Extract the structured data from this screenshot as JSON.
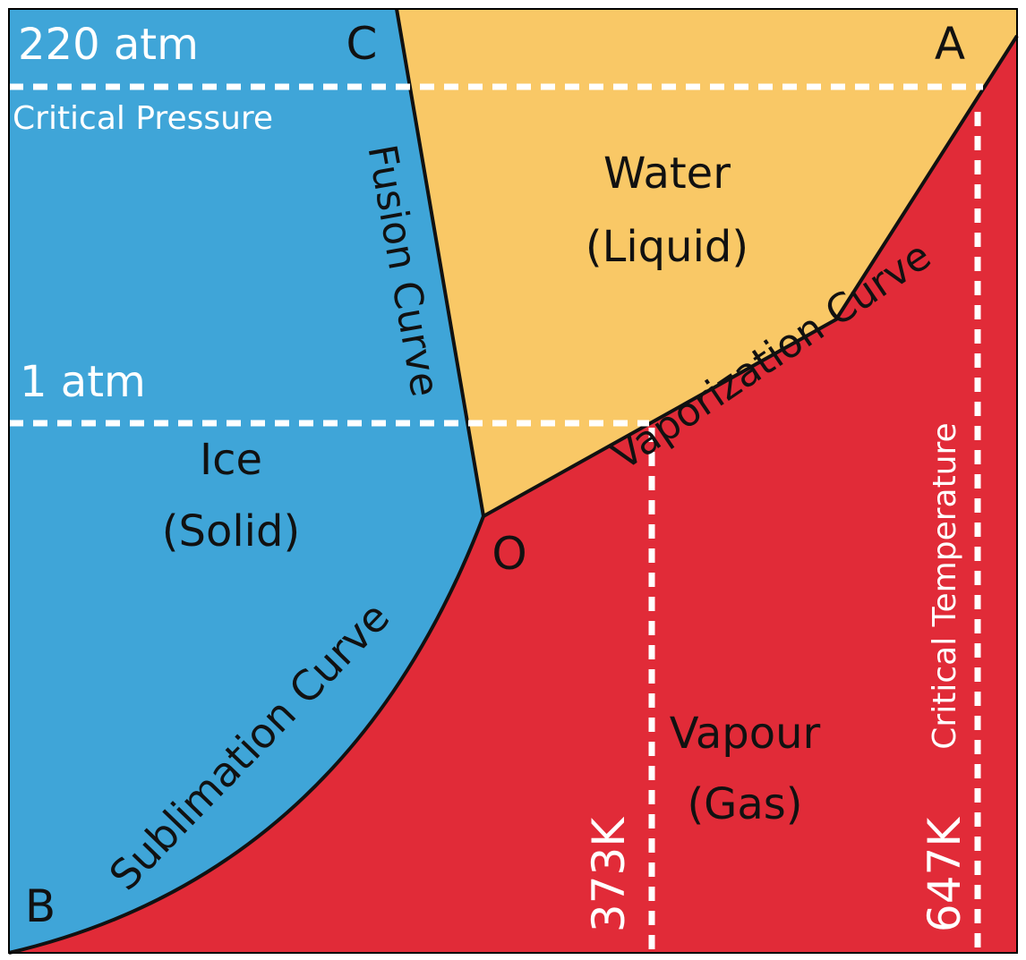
{
  "colors": {
    "solid": "#3fa5d8",
    "liquid": "#f9c866",
    "gas": "#e12b38",
    "curve": "#111111",
    "guide": "#ffffff",
    "border": "#000000"
  },
  "points": {
    "a": "A",
    "b": "B",
    "c": "C",
    "o": "O"
  },
  "pressure": {
    "critical_value": "220 atm",
    "critical_label": "Critical Pressure",
    "normal_value": "1 atm"
  },
  "temperature": {
    "boiling_value": "373K",
    "critical_value": "647K",
    "critical_label": "Critical Temperature"
  },
  "phases": {
    "liquid_name": "Water",
    "liquid_state": "(Liquid)",
    "solid_name": "Ice",
    "solid_state": "(Solid)",
    "gas_name": "Vapour",
    "gas_state": "(Gas)"
  },
  "curves": {
    "fusion": "Fusion Curve",
    "vaporization": "Vaporization Curve",
    "sublimation": "Sublimation Curve"
  }
}
